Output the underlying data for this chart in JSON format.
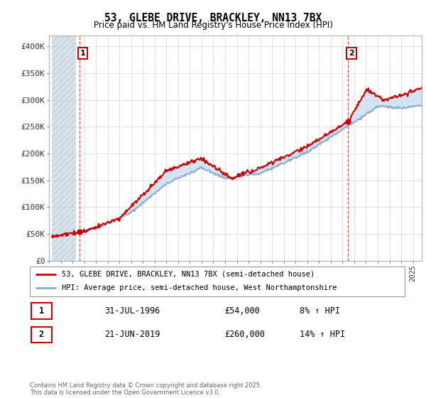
{
  "title": "53, GLEBE DRIVE, BRACKLEY, NN13 7BX",
  "subtitle": "Price paid vs. HM Land Registry's House Price Index (HPI)",
  "ylabel_ticks": [
    "£0",
    "£50K",
    "£100K",
    "£150K",
    "£200K",
    "£250K",
    "£300K",
    "£350K",
    "£400K"
  ],
  "ytick_values": [
    0,
    50000,
    100000,
    150000,
    200000,
    250000,
    300000,
    350000,
    400000
  ],
  "ylim": [
    0,
    420000
  ],
  "xlim_start": 1994.25,
  "xlim_end": 2025.75,
  "purchase1_x": 1996.58,
  "purchase1_y": 54000,
  "purchase2_x": 2019.47,
  "purchase2_y": 260000,
  "legend_line1": "53, GLEBE DRIVE, BRACKLEY, NN13 7BX (semi-detached house)",
  "legend_line2": "HPI: Average price, semi-detached house, West Northamptonshire",
  "table_row1": [
    "1",
    "31-JUL-1996",
    "£54,000",
    "8% ↑ HPI"
  ],
  "table_row2": [
    "2",
    "21-JUN-2019",
    "£260,000",
    "14% ↑ HPI"
  ],
  "footer": "Contains HM Land Registry data © Crown copyright and database right 2025.\nThis data is licensed under the Open Government Licence v3.0.",
  "line_color_price": "#cc0000",
  "line_color_hpi": "#88aacc",
  "fill_color": "#cce0f0",
  "hatch_color": "#d0dde8",
  "grid_color": "#cccccc",
  "vline_color": "#dd4444",
  "bg_color": "#f8f8f8"
}
